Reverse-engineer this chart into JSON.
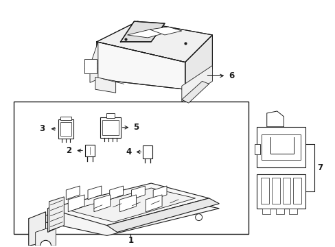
{
  "background_color": "#ffffff",
  "line_color": "#1a1a1a",
  "fig_width": 4.89,
  "fig_height": 3.6,
  "dpi": 100,
  "label_fontsize": 8.5,
  "lw": 0.8
}
